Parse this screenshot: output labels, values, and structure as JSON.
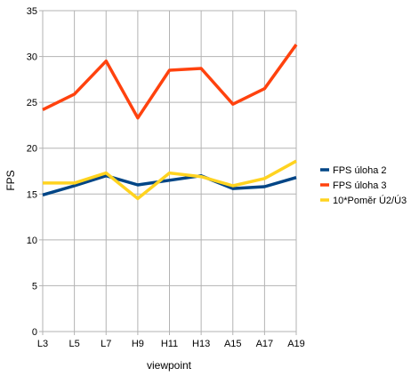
{
  "chart_data": {
    "type": "line",
    "title": "",
    "xlabel": "viewpoint",
    "ylabel": "FPS",
    "categories": [
      "L3",
      "L5",
      "L7",
      "H9",
      "H11",
      "H13",
      "A15",
      "A17",
      "A19"
    ],
    "ylim": [
      0,
      35
    ],
    "yticks": [
      0,
      5,
      10,
      15,
      20,
      25,
      30,
      35
    ],
    "grid": true,
    "legend_position": "right",
    "series": [
      {
        "name": "FPS úloha 2",
        "color": "#004586",
        "values": [
          14.9,
          15.9,
          17.0,
          16.0,
          16.5,
          17.0,
          15.6,
          15.8,
          16.8
        ]
      },
      {
        "name": "FPS úloha 3",
        "color": "#ff420e",
        "values": [
          24.2,
          25.9,
          29.5,
          23.3,
          28.5,
          28.7,
          24.8,
          26.5,
          31.3
        ]
      },
      {
        "name": "10*Poměr Ú2/Ú3",
        "color": "#ffd320",
        "values": [
          16.2,
          16.2,
          17.3,
          14.5,
          17.3,
          16.9,
          15.9,
          16.7,
          18.6
        ]
      }
    ]
  }
}
